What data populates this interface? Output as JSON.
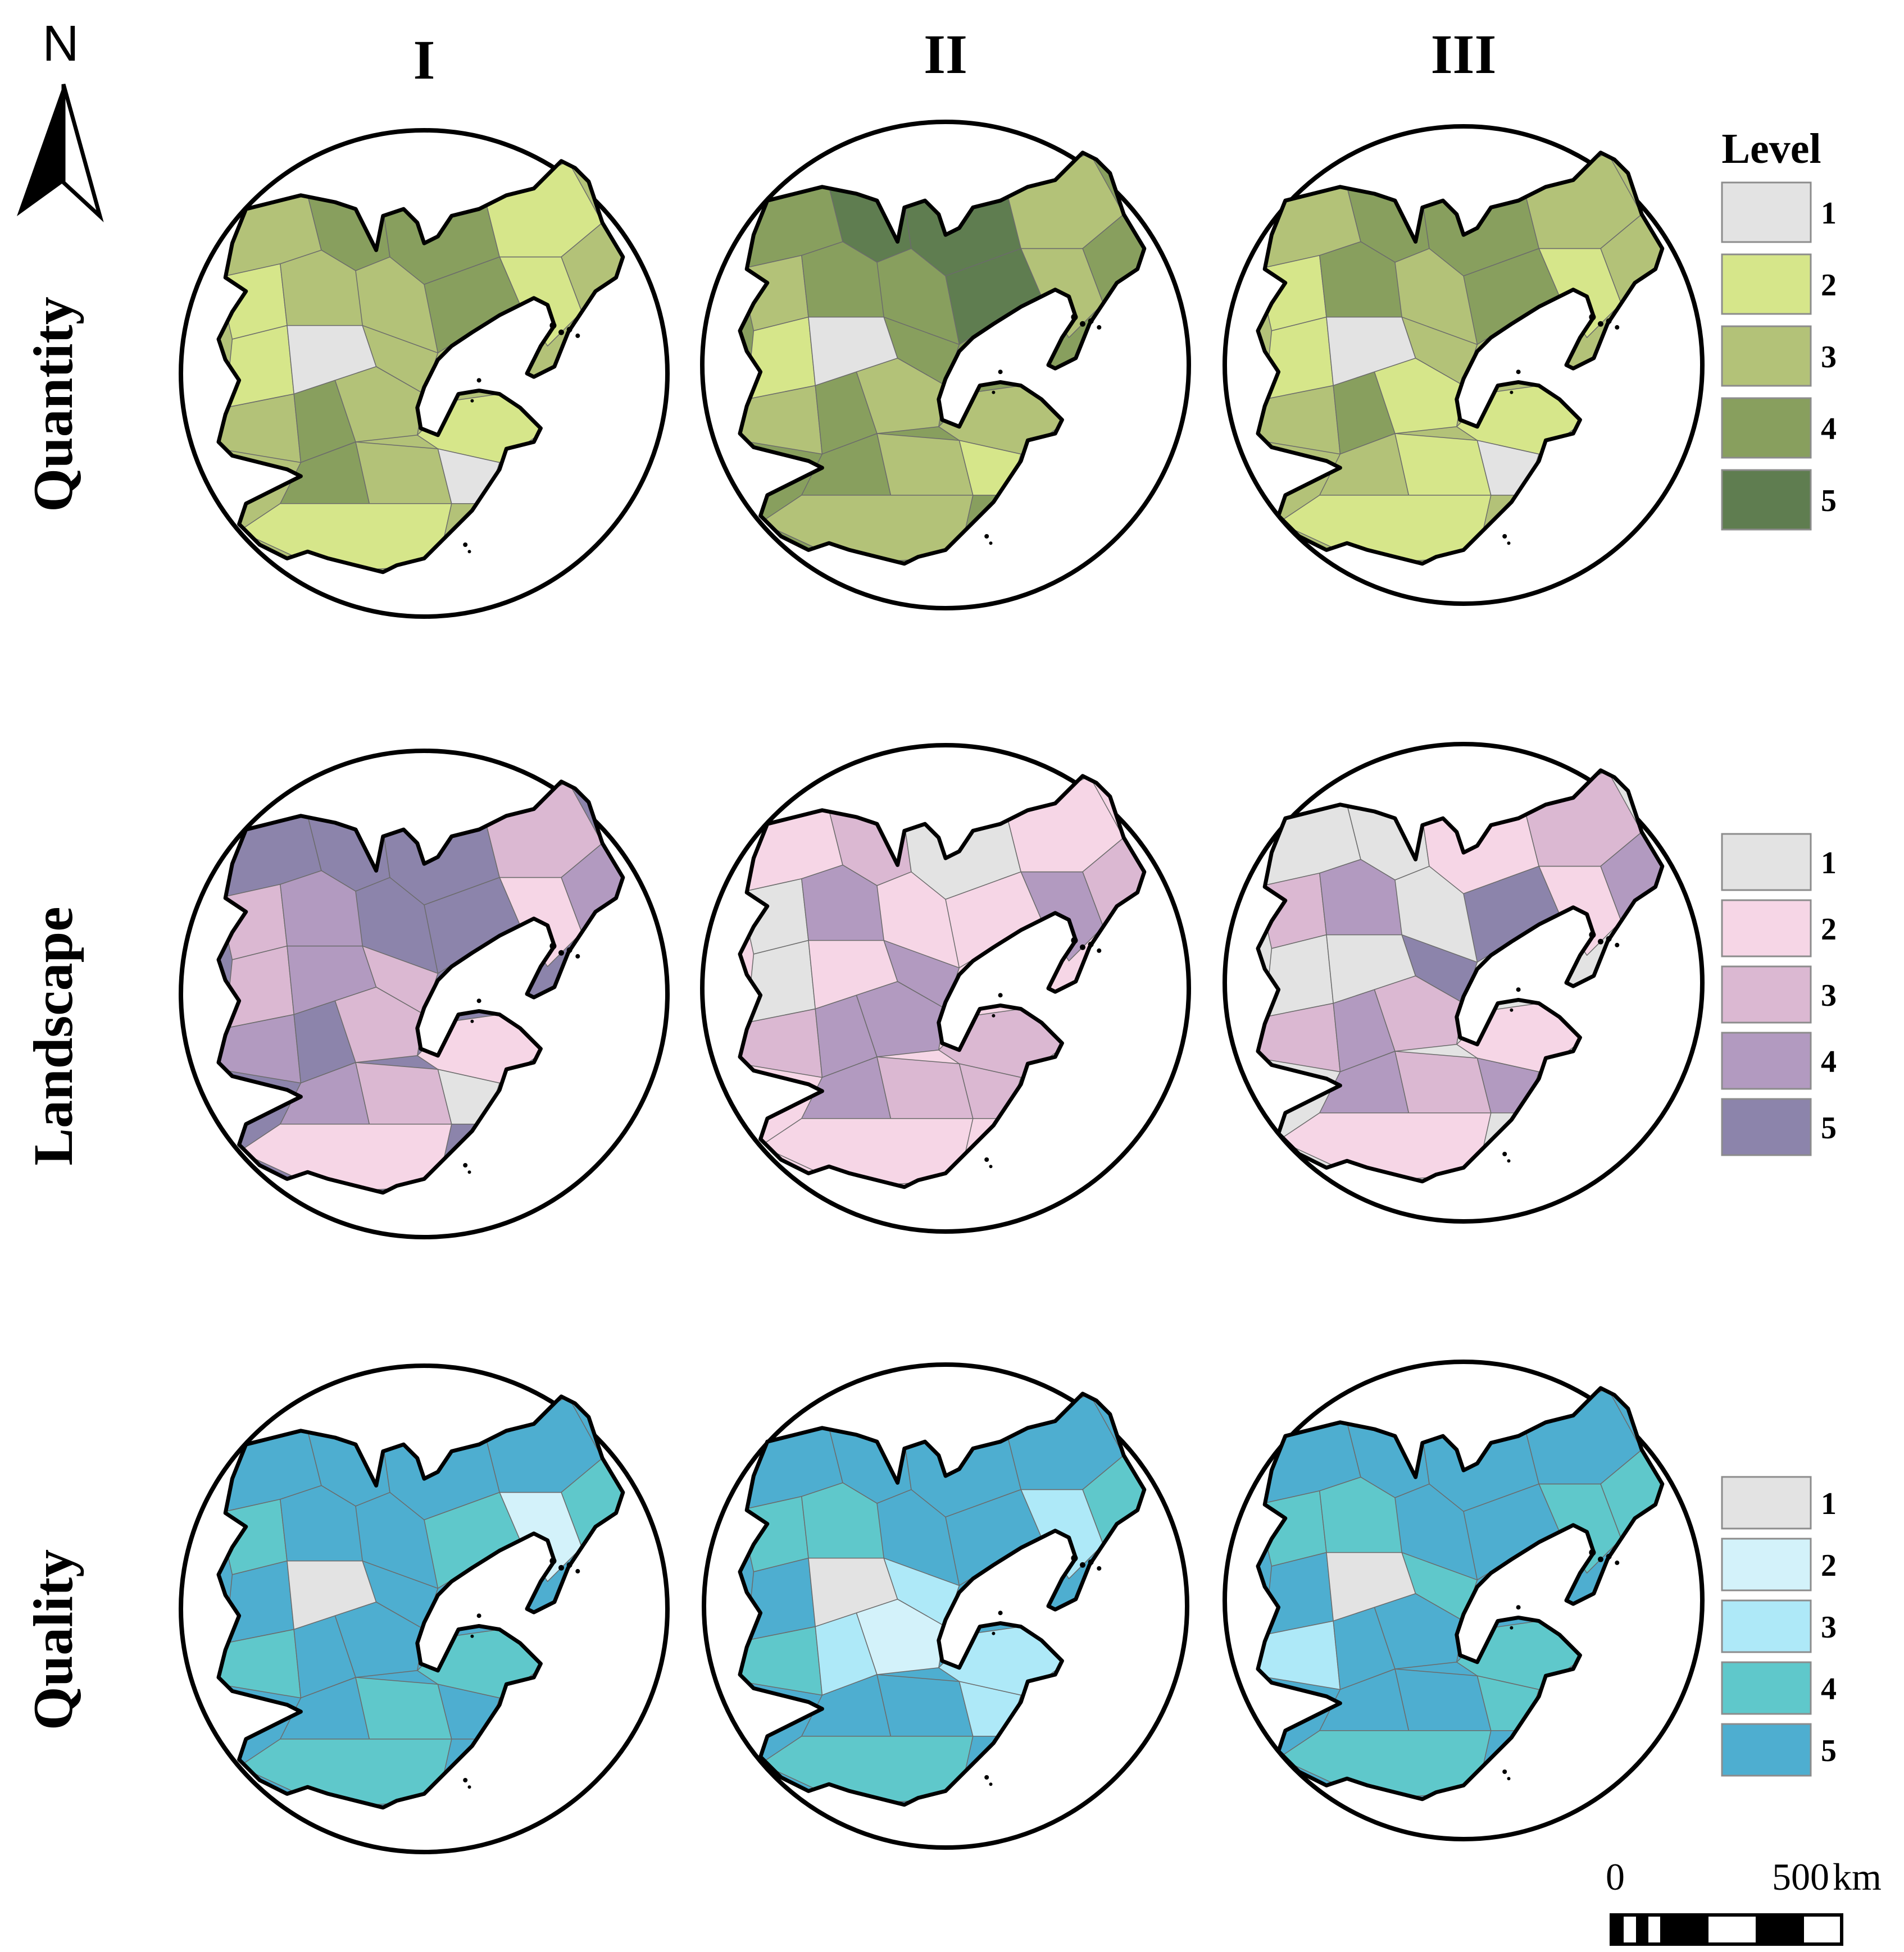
{
  "north_arrow": {
    "label": "N"
  },
  "columns": [
    "I",
    "II",
    "III"
  ],
  "rows": [
    {
      "label": "Quantity",
      "legend_title": "Level",
      "levels": [
        "1",
        "2",
        "3",
        "4",
        "5"
      ],
      "colors": [
        "#e3e3e3",
        "#d6e68a",
        "#b3c278",
        "#889f5e",
        "#5f7d50"
      ],
      "maps": [
        [
          3,
          4,
          2,
          3,
          4,
          2,
          3,
          2,
          4,
          2,
          1,
          3,
          3,
          4,
          3,
          2,
          4,
          3,
          1,
          2
        ],
        [
          4,
          5,
          3,
          4,
          5,
          3,
          4,
          3,
          5,
          2,
          1,
          4,
          3,
          4,
          3,
          3,
          4,
          3,
          2,
          3
        ],
        [
          3,
          4,
          2,
          4,
          4,
          3,
          3,
          2,
          4,
          2,
          1,
          3,
          3,
          4,
          2,
          2,
          3,
          2,
          1,
          2
        ]
      ]
    },
    {
      "label": "Landscape",
      "legend_title": "",
      "levels": [
        "1",
        "2",
        "3",
        "4",
        "5"
      ],
      "colors": [
        "#e3e3e3",
        "#f6d6e6",
        "#dbb8d2",
        "#b29ac0",
        "#8c84ab"
      ],
      "maps": [
        [
          5,
          5,
          3,
          4,
          5,
          3,
          4,
          2,
          5,
          3,
          4,
          3,
          4,
          5,
          3,
          2,
          4,
          3,
          1,
          2
        ],
        [
          2,
          3,
          1,
          4,
          1,
          2,
          3,
          4,
          2,
          1,
          2,
          4,
          3,
          4,
          4,
          3,
          4,
          3,
          3,
          2
        ],
        [
          1,
          1,
          3,
          4,
          2,
          3,
          4,
          2,
          5,
          1,
          1,
          5,
          3,
          4,
          3,
          2,
          4,
          3,
          4,
          2
        ]
      ]
    },
    {
      "label": "Quality",
      "legend_title": "",
      "levels": [
        "1",
        "2",
        "3",
        "4",
        "5"
      ],
      "colors": [
        "#e3e3e3",
        "#d3f2fa",
        "#aee9f8",
        "#5fc8cb",
        "#4eaed0"
      ],
      "maps": [
        [
          5,
          5,
          4,
          5,
          5,
          5,
          4,
          2,
          4,
          5,
          1,
          5,
          4,
          5,
          5,
          4,
          5,
          4,
          5,
          4
        ],
        [
          5,
          5,
          4,
          4,
          5,
          5,
          4,
          3,
          5,
          5,
          1,
          3,
          4,
          3,
          2,
          3,
          5,
          5,
          3,
          4
        ],
        [
          5,
          5,
          4,
          4,
          5,
          5,
          4,
          4,
          5,
          5,
          1,
          4,
          3,
          5,
          5,
          4,
          5,
          5,
          4,
          4
        ]
      ]
    }
  ],
  "scale_bar": {
    "start": "0",
    "end": "500",
    "unit": "km"
  }
}
